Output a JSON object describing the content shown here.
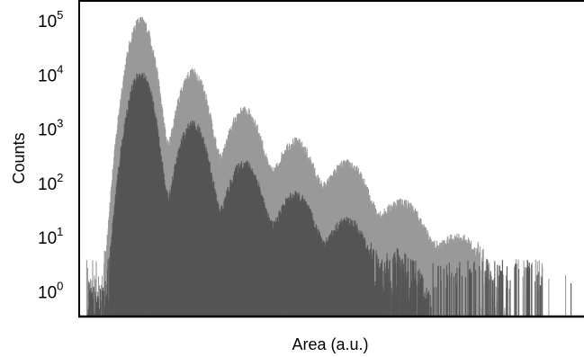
{
  "chart_data": {
    "type": "area",
    "xlabel": "Area (a.u.)",
    "ylabel": "Counts",
    "y_scale": "log",
    "ylim": [
      0.35,
      200000
    ],
    "xlim": [
      0,
      100
    ],
    "x_ticks": "none",
    "grid": false,
    "y_ticks": [
      {
        "value": 1,
        "base": "10",
        "exp": "0"
      },
      {
        "value": 10,
        "base": "10",
        "exp": "1"
      },
      {
        "value": 100,
        "base": "10",
        "exp": "2"
      },
      {
        "value": 1000,
        "base": "10",
        "exp": "3"
      },
      {
        "value": 10000,
        "base": "10",
        "exp": "4"
      },
      {
        "value": 100000,
        "base": "10",
        "exp": "5"
      }
    ],
    "colors": {
      "light_series": "#999999",
      "dark_series": "#555555",
      "axis": "#000000"
    },
    "series": [
      {
        "color": "#999999",
        "peaks": [
          {
            "x": 12.2,
            "y": 100000
          },
          {
            "x": 22.5,
            "y": 11000
          },
          {
            "x": 32.7,
            "y": 2200
          },
          {
            "x": 42.8,
            "y": 580
          },
          {
            "x": 53.0,
            "y": 230
          },
          {
            "x": 63.8,
            "y": 45
          },
          {
            "x": 75.0,
            "y": 10
          }
        ]
      },
      {
        "color": "#555555",
        "peaks": [
          {
            "x": 12.2,
            "y": 10000
          },
          {
            "x": 22.5,
            "y": 1200
          },
          {
            "x": 32.7,
            "y": 230
          },
          {
            "x": 42.8,
            "y": 60
          },
          {
            "x": 53.0,
            "y": 20
          },
          {
            "x": 63.5,
            "y": 3
          }
        ]
      }
    ]
  }
}
